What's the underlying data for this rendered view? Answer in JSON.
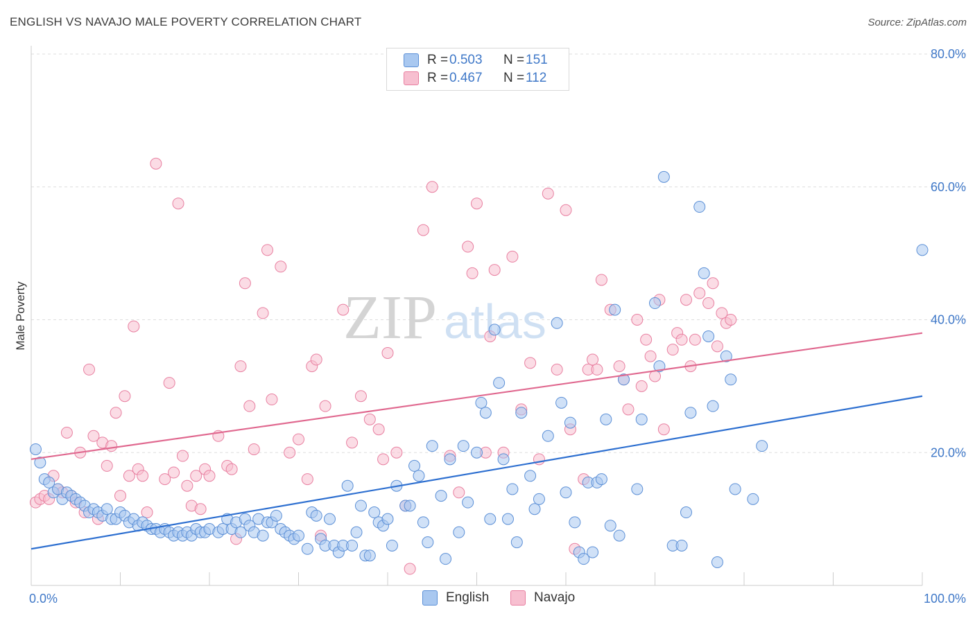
{
  "title": "ENGLISH VS NAVAJO MALE POVERTY CORRELATION CHART",
  "source": "Source: ZipAtlas.com",
  "watermark": {
    "zip": "ZIP",
    "atlas": "atlas"
  },
  "colors": {
    "english_fill": "#a9c8f0",
    "english_stroke": "#5b8fd6",
    "english_line": "#2d6fd0",
    "navajo_fill": "#f7bfd0",
    "navajo_stroke": "#e87fa0",
    "navajo_line": "#e0688f",
    "axis_text": "#3f78c8",
    "grid": "#dddddd"
  },
  "legend": {
    "rows": [
      {
        "series": "English",
        "r_label": "R =",
        "r_value": "0.503",
        "n_label": "N =",
        "n_value": "151"
      },
      {
        "series": "Navajo",
        "r_label": "R =",
        "r_value": "0.467",
        "n_label": "N =",
        "n_value": "112"
      }
    ]
  },
  "bottom_legend": {
    "english": "English",
    "navajo": "Navajo"
  },
  "chart_data": {
    "type": "scatter",
    "title": "ENGLISH VS NAVAJO MALE POVERTY CORRELATION CHART",
    "xlabel": "",
    "ylabel": "Male Poverty",
    "xlim": [
      0,
      100
    ],
    "ylim": [
      0,
      80
    ],
    "x_tick_labels": [
      "0.0%",
      "100.0%"
    ],
    "y_tick_labels": [
      "20.0%",
      "40.0%",
      "60.0%",
      "80.0%"
    ],
    "y_ticks": [
      20,
      40,
      60,
      80
    ],
    "grid": "horizontal dashed",
    "legend_position": "top-center",
    "series": [
      {
        "name": "English",
        "r": 0.503,
        "n": 151,
        "trend": {
          "x": [
            0,
            100
          ],
          "y": [
            5.5,
            28.5
          ]
        },
        "points": [
          [
            0.5,
            20.5
          ],
          [
            1,
            18.5
          ],
          [
            1.5,
            16
          ],
          [
            2,
            15.5
          ],
          [
            2.5,
            14
          ],
          [
            3,
            14.5
          ],
          [
            3.5,
            13
          ],
          [
            4,
            14
          ],
          [
            4.5,
            13.5
          ],
          [
            5,
            13
          ],
          [
            5.5,
            12.5
          ],
          [
            6,
            12
          ],
          [
            6.5,
            11
          ],
          [
            7,
            11.5
          ],
          [
            7.5,
            11
          ],
          [
            8,
            10.5
          ],
          [
            8.5,
            11.5
          ],
          [
            9,
            10
          ],
          [
            9.5,
            10
          ],
          [
            10,
            11
          ],
          [
            10.5,
            10.5
          ],
          [
            11,
            9.5
          ],
          [
            11.5,
            10
          ],
          [
            12,
            9
          ],
          [
            12.5,
            9.5
          ],
          [
            13,
            9
          ],
          [
            13.5,
            8.5
          ],
          [
            14,
            8.5
          ],
          [
            14.5,
            8
          ],
          [
            15,
            8.5
          ],
          [
            15.5,
            8
          ],
          [
            16,
            7.5
          ],
          [
            16.5,
            8
          ],
          [
            17,
            7.5
          ],
          [
            17.5,
            8
          ],
          [
            18,
            7.5
          ],
          [
            18.5,
            8.5
          ],
          [
            19,
            8
          ],
          [
            19.5,
            8
          ],
          [
            20,
            8.5
          ],
          [
            21,
            8
          ],
          [
            21.5,
            8.5
          ],
          [
            22,
            10
          ],
          [
            22.5,
            8.5
          ],
          [
            23,
            9.5
          ],
          [
            23.5,
            8
          ],
          [
            24,
            10
          ],
          [
            24.5,
            9
          ],
          [
            25,
            8
          ],
          [
            25.5,
            10
          ],
          [
            26,
            7.5
          ],
          [
            26.5,
            9.5
          ],
          [
            27,
            9.5
          ],
          [
            27.5,
            10.5
          ],
          [
            28,
            8.5
          ],
          [
            28.5,
            8
          ],
          [
            29,
            7.5
          ],
          [
            29.5,
            7
          ],
          [
            30,
            7.5
          ],
          [
            31,
            5.5
          ],
          [
            31.5,
            11
          ],
          [
            32,
            10.5
          ],
          [
            32.5,
            7
          ],
          [
            33,
            6
          ],
          [
            33.5,
            10
          ],
          [
            34,
            6
          ],
          [
            34.5,
            5
          ],
          [
            35,
            6
          ],
          [
            35.5,
            15
          ],
          [
            36,
            6
          ],
          [
            36.5,
            8
          ],
          [
            37,
            12
          ],
          [
            37.5,
            4.5
          ],
          [
            38,
            4.5
          ],
          [
            38.5,
            11
          ],
          [
            39,
            9.5
          ],
          [
            39.5,
            9
          ],
          [
            40,
            10
          ],
          [
            40.5,
            6
          ],
          [
            41,
            15
          ],
          [
            42,
            12
          ],
          [
            42.5,
            12
          ],
          [
            43,
            18
          ],
          [
            43.5,
            16.5
          ],
          [
            44,
            9.5
          ],
          [
            44.5,
            6.5
          ],
          [
            45,
            21
          ],
          [
            46,
            13.5
          ],
          [
            46.5,
            4
          ],
          [
            47,
            19
          ],
          [
            48,
            8
          ],
          [
            48.5,
            21
          ],
          [
            49,
            12.5
          ],
          [
            50,
            20
          ],
          [
            50.5,
            27.5
          ],
          [
            51,
            26
          ],
          [
            51.5,
            10
          ],
          [
            52,
            38.5
          ],
          [
            52.5,
            30.5
          ],
          [
            53,
            19
          ],
          [
            53.5,
            10
          ],
          [
            54,
            14.5
          ],
          [
            54.5,
            6.5
          ],
          [
            55,
            26
          ],
          [
            56,
            16.5
          ],
          [
            56.5,
            11.5
          ],
          [
            57,
            13
          ],
          [
            58,
            22.5
          ],
          [
            59,
            39.5
          ],
          [
            59.5,
            27.5
          ],
          [
            60,
            14
          ],
          [
            60.5,
            24.5
          ],
          [
            61,
            9.5
          ],
          [
            61.5,
            5
          ],
          [
            62,
            4
          ],
          [
            62.5,
            15.5
          ],
          [
            63,
            5
          ],
          [
            63.5,
            15.5
          ],
          [
            64,
            16
          ],
          [
            64.5,
            25
          ],
          [
            65,
            9
          ],
          [
            65.5,
            41.5
          ],
          [
            66,
            7.5
          ],
          [
            66.5,
            31
          ],
          [
            68,
            14.5
          ],
          [
            68.5,
            25
          ],
          [
            70,
            42.5
          ],
          [
            70.5,
            33
          ],
          [
            71,
            61.5
          ],
          [
            72,
            6
          ],
          [
            73,
            6
          ],
          [
            73.5,
            11
          ],
          [
            74,
            26
          ],
          [
            75,
            57
          ],
          [
            75.5,
            47
          ],
          [
            76,
            37.5
          ],
          [
            76.5,
            27
          ],
          [
            77,
            3.5
          ],
          [
            78,
            34.5
          ],
          [
            78.5,
            31
          ],
          [
            79,
            14.5
          ],
          [
            81,
            13
          ],
          [
            82,
            21
          ],
          [
            100,
            50.5
          ]
        ]
      },
      {
        "name": "Navajo",
        "r": 0.467,
        "n": 112,
        "trend": {
          "x": [
            0,
            100
          ],
          "y": [
            19,
            38
          ]
        },
        "points": [
          [
            0.5,
            12.5
          ],
          [
            1,
            13
          ],
          [
            1.5,
            13.5
          ],
          [
            2,
            13
          ],
          [
            2.5,
            16.5
          ],
          [
            3,
            14.5
          ],
          [
            3.5,
            14
          ],
          [
            4,
            23
          ],
          [
            4.5,
            13.5
          ],
          [
            5,
            12.5
          ],
          [
            5.5,
            20
          ],
          [
            6,
            11
          ],
          [
            6.5,
            32.5
          ],
          [
            7,
            22.5
          ],
          [
            7.5,
            10
          ],
          [
            8,
            21.5
          ],
          [
            8.5,
            18
          ],
          [
            9,
            21
          ],
          [
            9.5,
            26
          ],
          [
            10,
            13.5
          ],
          [
            10.5,
            28.5
          ],
          [
            11,
            16.5
          ],
          [
            11.5,
            39
          ],
          [
            12,
            17.5
          ],
          [
            12.5,
            16.5
          ],
          [
            13,
            11
          ],
          [
            14,
            63.5
          ],
          [
            15,
            16
          ],
          [
            15.5,
            30.5
          ],
          [
            16,
            17
          ],
          [
            16.5,
            57.5
          ],
          [
            17,
            19.5
          ],
          [
            17.5,
            15
          ],
          [
            18,
            12
          ],
          [
            18.5,
            16.5
          ],
          [
            19,
            11.5
          ],
          [
            19.5,
            17.5
          ],
          [
            20,
            16.5
          ],
          [
            21,
            22.5
          ],
          [
            22,
            18
          ],
          [
            22.5,
            17.5
          ],
          [
            23,
            7
          ],
          [
            23.5,
            33
          ],
          [
            24,
            45.5
          ],
          [
            24.5,
            27
          ],
          [
            25,
            20.5
          ],
          [
            26,
            41
          ],
          [
            26.5,
            50.5
          ],
          [
            27,
            28
          ],
          [
            28,
            48
          ],
          [
            29,
            20
          ],
          [
            30,
            22
          ],
          [
            31,
            16
          ],
          [
            31.5,
            33
          ],
          [
            32,
            34
          ],
          [
            32.5,
            7.5
          ],
          [
            33,
            27
          ],
          [
            35,
            41.5
          ],
          [
            36,
            21.5
          ],
          [
            37,
            28.5
          ],
          [
            38,
            25
          ],
          [
            39,
            23.5
          ],
          [
            39.5,
            19
          ],
          [
            40,
            35
          ],
          [
            41,
            20
          ],
          [
            42,
            12
          ],
          [
            42.5,
            2.5
          ],
          [
            44,
            53.5
          ],
          [
            45,
            60
          ],
          [
            47,
            19.5
          ],
          [
            48,
            14
          ],
          [
            49,
            51
          ],
          [
            49.5,
            47
          ],
          [
            50,
            57.5
          ],
          [
            51,
            20
          ],
          [
            51.5,
            37.5
          ],
          [
            52,
            47.5
          ],
          [
            53,
            20
          ],
          [
            54,
            49.5
          ],
          [
            55,
            26.5
          ],
          [
            56,
            33.5
          ],
          [
            57,
            19
          ],
          [
            58,
            59
          ],
          [
            59,
            32.5
          ],
          [
            60,
            56.5
          ],
          [
            60.5,
            23.5
          ],
          [
            61,
            5.5
          ],
          [
            62,
            16
          ],
          [
            62.5,
            32.5
          ],
          [
            63,
            34
          ],
          [
            63.5,
            32.5
          ],
          [
            64,
            46
          ],
          [
            65,
            41.5
          ],
          [
            66,
            33
          ],
          [
            66.5,
            31
          ],
          [
            67,
            26.5
          ],
          [
            68,
            40
          ],
          [
            68.5,
            30
          ],
          [
            69,
            37
          ],
          [
            69.5,
            34.5
          ],
          [
            70,
            31.5
          ],
          [
            70.5,
            43
          ],
          [
            71,
            23.5
          ],
          [
            72,
            35.5
          ],
          [
            72.5,
            38
          ],
          [
            73,
            37
          ],
          [
            73.5,
            43
          ],
          [
            74,
            33
          ],
          [
            74.5,
            37
          ],
          [
            75,
            44
          ],
          [
            76,
            42.5
          ],
          [
            76.5,
            45.5
          ],
          [
            77,
            36
          ],
          [
            77.5,
            41
          ],
          [
            78,
            39.5
          ],
          [
            78.5,
            40
          ]
        ]
      }
    ]
  }
}
